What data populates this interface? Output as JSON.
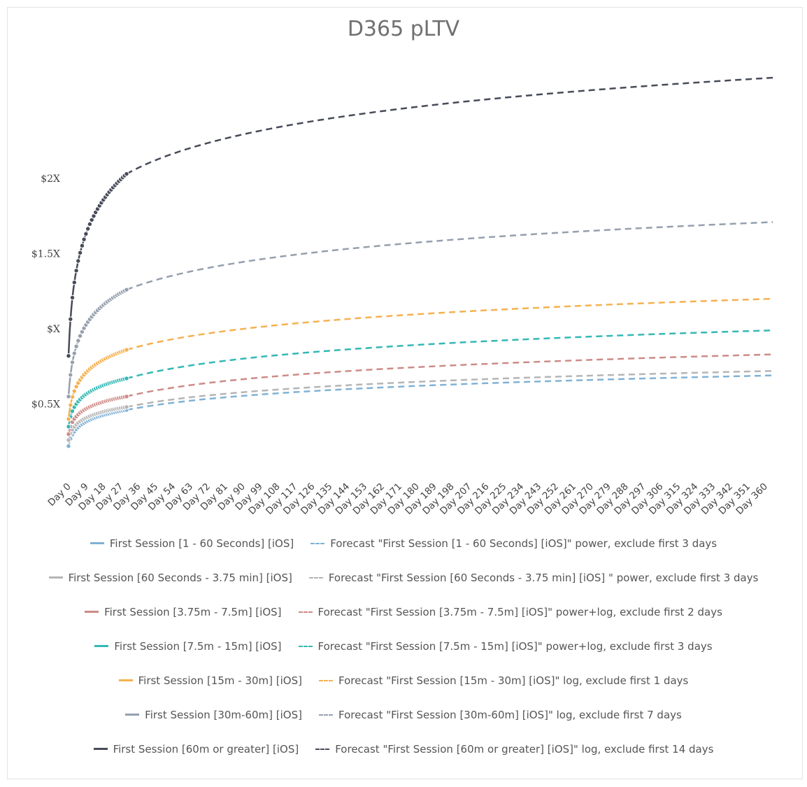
{
  "chart_data": {
    "type": "line",
    "title": "D365 pLTV",
    "xlabel": "",
    "ylabel": "",
    "x_domain": [
      0,
      365
    ],
    "x_ticks": [
      0,
      9,
      18,
      27,
      36,
      45,
      54,
      63,
      72,
      81,
      90,
      99,
      108,
      117,
      126,
      135,
      144,
      153,
      162,
      171,
      180,
      189,
      198,
      207,
      216,
      225,
      234,
      243,
      252,
      261,
      270,
      279,
      288,
      297,
      306,
      315,
      324,
      333,
      342,
      351,
      360
    ],
    "x_tick_labels": [
      "Day 0",
      "Day 9",
      "Day 18",
      "Day 27",
      "Day 36",
      "Day 45",
      "Day 54",
      "Day 63",
      "Day 72",
      "Day 81",
      "Day 90",
      "Day 99",
      "Day 108",
      "Day 117",
      "Day 126",
      "Day 135",
      "Day 144",
      "Day 153",
      "Day 162",
      "Day 171",
      "Day 180",
      "Day 189",
      "Day 198",
      "Day 207",
      "Day 216",
      "Day 225",
      "Day 234",
      "Day 243",
      "Day 252",
      "Day 261",
      "Day 270",
      "Day 279",
      "Day 288",
      "Day 297",
      "Day 306",
      "Day 315",
      "Day 324",
      "Day 333",
      "Day 342",
      "Day 351",
      "Day 360"
    ],
    "y_ticks": [
      0.5,
      1.0,
      1.5,
      2.0
    ],
    "y_tick_labels": [
      "$0.5X",
      "$X",
      "$1.5X",
      "$2X"
    ],
    "ylim": [
      0,
      2.9
    ],
    "grid": false,
    "legend_position": "bottom",
    "actual_days": 30,
    "forecast_start_day": 30,
    "forecast_end_day": 365,
    "series": [
      {
        "name": "First Session [1 - 60 Seconds] [iOS]",
        "forecast_name": "Forecast \"First Session [1 - 60 Seconds] [iOS]\" power, exclude first 3 days",
        "color": "#7fb2d6",
        "y_day0": 0.22,
        "y_day30": 0.46,
        "y_day365": 0.69
      },
      {
        "name": "First Session [60 Seconds - 3.75 min] [iOS]",
        "forecast_name": "Forecast \"First Session [60 Seconds - 3.75 min] [iOS] \" power, exclude first 3 days",
        "color": "#b5b5b5",
        "y_day0": 0.26,
        "y_day30": 0.48,
        "y_day365": 0.72
      },
      {
        "name": "First Session [3.75m - 7.5m] [iOS]",
        "forecast_name": "Forecast \"First Session [3.75m - 7.5m] [iOS]\" power+log, exclude first 2 days",
        "color": "#cd8b87",
        "y_day0": 0.3,
        "y_day30": 0.55,
        "y_day365": 0.83
      },
      {
        "name": "First Session [7.5m - 15m] [iOS]",
        "forecast_name": "Forecast \"First Session [7.5m - 15m] [iOS]\" power+log, exclude first 3 days",
        "color": "#34b8b5",
        "y_day0": 0.35,
        "y_day30": 0.67,
        "y_day365": 0.99
      },
      {
        "name": "First Session [15m - 30m] [iOS]",
        "forecast_name": "Forecast \"First Session [15m - 30m] [iOS]\" log, exclude first 1 days",
        "color": "#f5b14f",
        "y_day0": 0.4,
        "y_day30": 0.86,
        "y_day365": 1.2
      },
      {
        "name": "First Session [30m-60m] [iOS]",
        "forecast_name": "Forecast \"First Session [30m-60m] [iOS]\" log, exclude first 7 days",
        "color": "#95a0ae",
        "y_day0": 0.55,
        "y_day30": 1.26,
        "y_day365": 1.71
      },
      {
        "name": "First Session [60m or greater] [iOS]",
        "forecast_name": "Forecast \"First Session [60m or greater] [iOS]\" log, exclude first 14 days",
        "color": "#474b59",
        "y_day0": 0.82,
        "y_day30": 2.03,
        "y_day365": 2.67
      }
    ]
  }
}
